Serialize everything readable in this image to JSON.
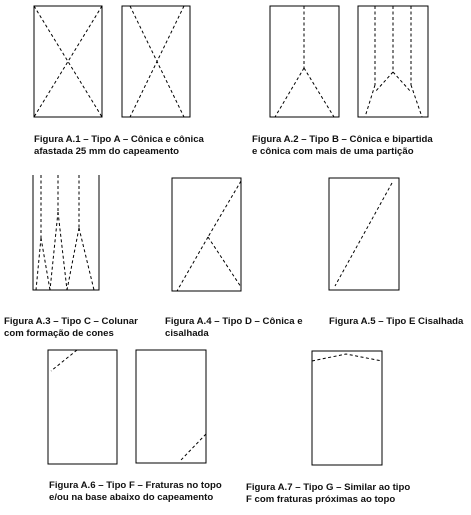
{
  "figures": {
    "a1": {
      "line1": "Figura A.1 – Tipo A – Cônica e cônica",
      "line2": "afastada 25 mm do capeamento"
    },
    "a2": {
      "line1": "Figura A.2 – Tipo B – Cônica e bipartida",
      "line2": "e cônica com mais de uma partição"
    },
    "a3": {
      "line1": "Figura A.3 – Tipo C – Colunar",
      "line2": "com formação de cones"
    },
    "a4": {
      "line1": "Figura A.4 – Tipo D – Cônica e",
      "line2": "cisalhada"
    },
    "a5": {
      "line1": "Figura A.5 – Tipo E Cisalhada"
    },
    "a6": {
      "line1": "Figura A.6 – Tipo F – Fraturas no topo",
      "line2": "e/ou na base abaixo do capeamento"
    },
    "a7": {
      "line1": "Figura A.7 – Tipo G – Similar ao tipo",
      "line2": "F com fraturas próximas ao topo"
    }
  },
  "colors": {
    "stroke": "#000000",
    "text": "#111111",
    "background": "#ffffff"
  }
}
